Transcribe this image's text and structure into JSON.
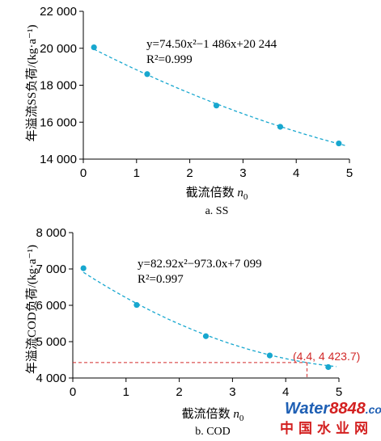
{
  "chart_data": [
    {
      "type": "scatter",
      "title": "",
      "caption": "a. SS",
      "xlabel": "截流倍数",
      "xlabel_sub": "0",
      "xlabel_var": "n",
      "ylabel": "年溢流SS负荷/(kg·a⁻¹)",
      "xlim": [
        0,
        5
      ],
      "ylim": [
        14000,
        22000
      ],
      "xticks": [
        "0",
        "1",
        "2",
        "3",
        "4",
        "5"
      ],
      "yticks": [
        "14 000",
        "16 000",
        "18 000",
        "20 000",
        "22 000"
      ],
      "ytick_values": [
        14000,
        16000,
        18000,
        20000,
        22000
      ],
      "series": [
        {
          "x": [
            0.2,
            1.2,
            2.5,
            3.7,
            4.8
          ],
          "y": [
            20050,
            18600,
            16900,
            15750,
            14850
          ]
        }
      ],
      "fit": {
        "a": 74.5,
        "b": -1486,
        "c": 20244,
        "x_range": [
          0.2,
          4.95
        ]
      },
      "equation": "y=74.50x²−1 486x+20 244",
      "r2": "R²=0.999",
      "colors": {
        "points": "#17a7cf",
        "fit": "#17a7cf"
      }
    },
    {
      "type": "scatter",
      "title": "",
      "caption": "b. COD",
      "xlabel": "截流倍数",
      "xlabel_sub": "0",
      "xlabel_var": "n",
      "ylabel": "年溢流COD负荷/(kg·a⁻¹)",
      "xlim": [
        0,
        5
      ],
      "ylim": [
        4000,
        8000
      ],
      "xticks": [
        "0",
        "1",
        "2",
        "3",
        "4",
        "5"
      ],
      "yticks": [
        "4 000",
        "5 000",
        "6 000",
        "7 000",
        "8 000"
      ],
      "ytick_values": [
        4000,
        5000,
        6000,
        7000,
        8000
      ],
      "series": [
        {
          "x": [
            0.2,
            1.2,
            2.5,
            3.7,
            4.8
          ],
          "y": [
            7020,
            6010,
            5150,
            4620,
            4300
          ]
        }
      ],
      "fit": {
        "a": 82.92,
        "b": -973.0,
        "c": 7099,
        "x_range": [
          0.2,
          4.95
        ]
      },
      "equation": "y=82.92x²−973.0x+7 099",
      "r2": "R²=0.997",
      "annotation": {
        "x": 4.4,
        "y": 4423.7,
        "label": "(4.4, 4 423.7)"
      },
      "colors": {
        "points": "#17a7cf",
        "fit": "#17a7cf",
        "reference": "#d22a2a"
      }
    }
  ],
  "watermark": {
    "brand_water": "Water",
    "brand_num": "8848",
    "brand_tld": ".com",
    "cn": "中国水业网",
    "colors": {
      "water": "#1e5fb4",
      "num": "#d32020"
    }
  }
}
